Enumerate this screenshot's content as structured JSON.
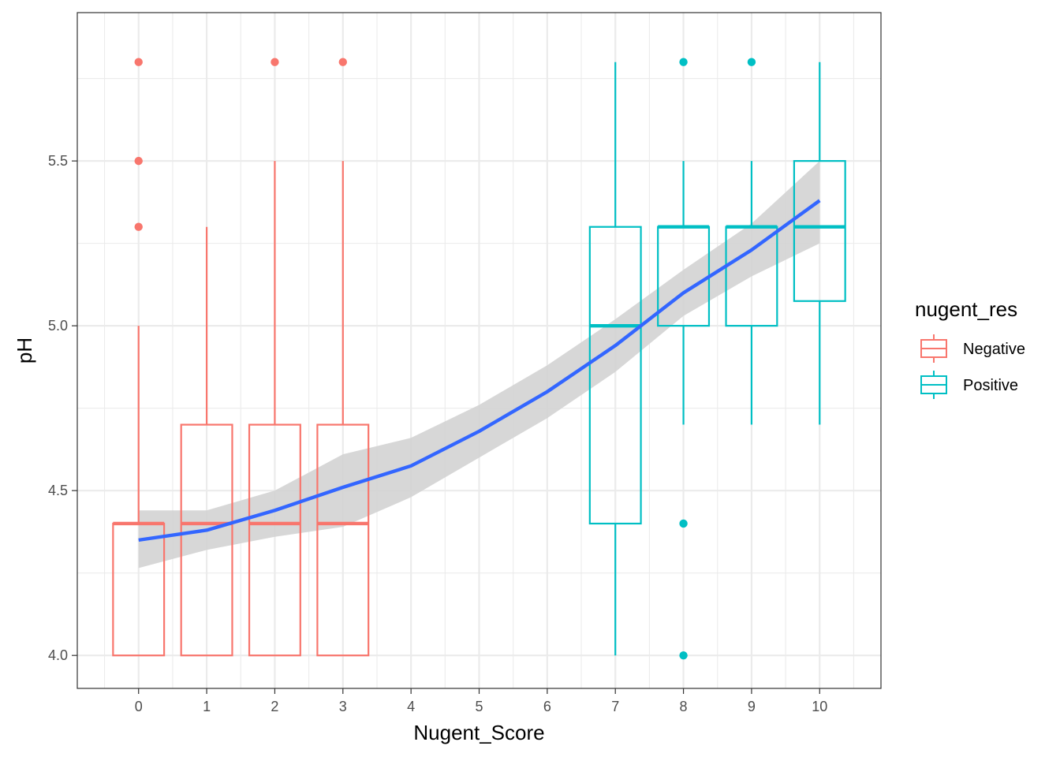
{
  "chart_data": {
    "type": "boxplot",
    "xlabel": "Nugent_Score",
    "ylabel": "pH",
    "xlim": [
      -0.9,
      10.9
    ],
    "ylim": [
      3.9,
      5.95
    ],
    "x_ticks": [
      "0",
      "1",
      "2",
      "3",
      "4",
      "5",
      "6",
      "7",
      "8",
      "9",
      "10"
    ],
    "y_ticks": [
      "4.0",
      "4.5",
      "5.0",
      "5.5"
    ],
    "grid": true,
    "legend": {
      "title": "nugent_res",
      "position": "right",
      "entries": [
        {
          "label": "Negative",
          "color": "#F8766D"
        },
        {
          "label": "Positive",
          "color": "#00BFC4"
        }
      ]
    },
    "boxes": [
      {
        "x": 0,
        "group": "Negative",
        "lower_whisker": 4.0,
        "q1": 4.0,
        "median": 4.4,
        "q3": 4.4,
        "upper_whisker": 5.0,
        "outliers": [
          5.3,
          5.5,
          5.8
        ]
      },
      {
        "x": 1,
        "group": "Negative",
        "lower_whisker": 4.0,
        "q1": 4.0,
        "median": 4.4,
        "q3": 4.7,
        "upper_whisker": 5.3,
        "outliers": []
      },
      {
        "x": 2,
        "group": "Negative",
        "lower_whisker": 4.0,
        "q1": 4.0,
        "median": 4.4,
        "q3": 4.7,
        "upper_whisker": 5.5,
        "outliers": [
          5.8
        ]
      },
      {
        "x": 3,
        "group": "Negative",
        "lower_whisker": 4.0,
        "q1": 4.0,
        "median": 4.4,
        "q3": 4.7,
        "upper_whisker": 5.5,
        "outliers": [
          5.8
        ]
      },
      {
        "x": 7,
        "group": "Positive",
        "lower_whisker": 4.0,
        "q1": 4.4,
        "median": 5.0,
        "q3": 5.3,
        "upper_whisker": 5.8,
        "outliers": []
      },
      {
        "x": 8,
        "group": "Positive",
        "lower_whisker": 4.7,
        "q1": 5.0,
        "median": 5.3,
        "q3": 5.3,
        "upper_whisker": 5.5,
        "outliers": [
          4.0,
          4.4,
          5.8
        ]
      },
      {
        "x": 9,
        "group": "Positive",
        "lower_whisker": 4.7,
        "q1": 5.0,
        "median": 5.3,
        "q3": 5.3,
        "upper_whisker": 5.5,
        "outliers": [
          5.8
        ]
      },
      {
        "x": 10,
        "group": "Positive",
        "lower_whisker": 4.7,
        "q1": 5.075,
        "median": 5.3,
        "q3": 5.5,
        "upper_whisker": 5.8,
        "outliers": []
      }
    ],
    "smooth": {
      "color": "#3366FF",
      "band_color": "#d3d3d3",
      "points": [
        {
          "x": 0,
          "y": 4.35,
          "lo": 4.265,
          "hi": 4.44
        },
        {
          "x": 1,
          "y": 4.38,
          "lo": 4.32,
          "hi": 4.44
        },
        {
          "x": 2,
          "y": 4.44,
          "lo": 4.36,
          "hi": 4.5
        },
        {
          "x": 3,
          "y": 4.51,
          "lo": 4.39,
          "hi": 4.61
        },
        {
          "x": 4,
          "y": 4.575,
          "lo": 4.48,
          "hi": 4.66
        },
        {
          "x": 5,
          "y": 4.68,
          "lo": 4.6,
          "hi": 4.76
        },
        {
          "x": 6,
          "y": 4.8,
          "lo": 4.72,
          "hi": 4.88
        },
        {
          "x": 7,
          "y": 4.94,
          "lo": 4.86,
          "hi": 5.02
        },
        {
          "x": 8,
          "y": 5.1,
          "lo": 5.03,
          "hi": 5.17
        },
        {
          "x": 9,
          "y": 5.23,
          "lo": 5.15,
          "hi": 5.31
        },
        {
          "x": 10,
          "y": 5.38,
          "lo": 5.25,
          "hi": 5.5
        }
      ]
    }
  }
}
